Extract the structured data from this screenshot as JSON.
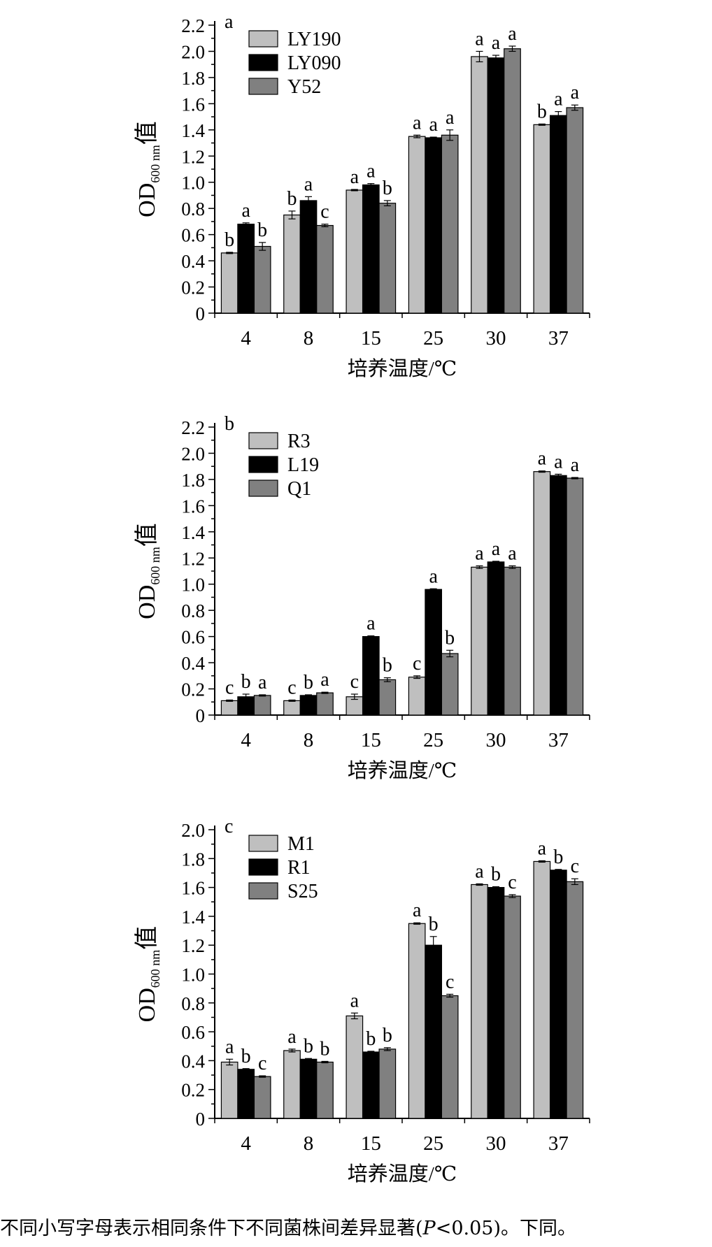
{
  "chart_data": [
    {
      "type": "bar",
      "panel_label": "a",
      "categories": [
        "4",
        "8",
        "15",
        "25",
        "30",
        "37"
      ],
      "series": [
        {
          "name": "LY190",
          "values": [
            0.46,
            0.75,
            0.94,
            1.35,
            1.96,
            1.44
          ],
          "errors": [
            0.005,
            0.03,
            0.005,
            0.01,
            0.04,
            0.005
          ],
          "letters": [
            "b",
            "b",
            "a",
            "a",
            "a",
            "b"
          ]
        },
        {
          "name": "LY090",
          "values": [
            0.68,
            0.86,
            0.98,
            1.34,
            1.95,
            1.51
          ],
          "errors": [
            0.01,
            0.03,
            0.01,
            0.005,
            0.02,
            0.03
          ],
          "letters": [
            "a",
            "a",
            "a",
            "a",
            "a",
            "a"
          ]
        },
        {
          "name": "Y52",
          "values": [
            0.51,
            0.67,
            0.84,
            1.36,
            2.02,
            1.57
          ],
          "errors": [
            0.03,
            0.01,
            0.02,
            0.04,
            0.02,
            0.02
          ],
          "letters": [
            "b",
            "c",
            "b",
            "a",
            "a",
            "a"
          ]
        }
      ],
      "xlabel": "培养温度/℃",
      "ylabel_main": "OD",
      "ylabel_sub": "600 nm",
      "ylabel_suffix": "值",
      "ylim": [
        0,
        2.2
      ],
      "yticks": [
        "0",
        "0.2",
        "0.4",
        "0.6",
        "0.8",
        "1.0",
        "1.2",
        "1.4",
        "1.6",
        "1.8",
        "2.0",
        "2.2"
      ],
      "legend_position": "top-left",
      "grid": false,
      "colors": [
        "#bfbfbf",
        "#000000",
        "#808080"
      ]
    },
    {
      "type": "bar",
      "panel_label": "b",
      "categories": [
        "4",
        "8",
        "15",
        "25",
        "30",
        "37"
      ],
      "series": [
        {
          "name": "R3",
          "values": [
            0.11,
            0.11,
            0.14,
            0.29,
            1.13,
            1.86
          ],
          "errors": [
            0.005,
            0.005,
            0.02,
            0.01,
            0.01,
            0.005
          ],
          "letters": [
            "c",
            "c",
            "c",
            "c",
            "a",
            "a"
          ]
        },
        {
          "name": "L19",
          "values": [
            0.14,
            0.15,
            0.6,
            0.96,
            1.17,
            1.83
          ],
          "errors": [
            0.02,
            0.005,
            0.005,
            0.005,
            0.005,
            0.01
          ],
          "letters": [
            "b",
            "b",
            "a",
            "a",
            "a",
            "a"
          ]
        },
        {
          "name": "Q1",
          "values": [
            0.15,
            0.17,
            0.27,
            0.47,
            1.13,
            1.81
          ],
          "errors": [
            0.005,
            0.005,
            0.015,
            0.025,
            0.01,
            0.005
          ],
          "letters": [
            "a",
            "a",
            "b",
            "b",
            "a",
            "a"
          ]
        }
      ],
      "xlabel": "培养温度/℃",
      "ylabel_main": "OD",
      "ylabel_sub": "600 nm",
      "ylabel_suffix": "值",
      "ylim": [
        0,
        2.2
      ],
      "yticks": [
        "0",
        "0.2",
        "0.4",
        "0.6",
        "0.8",
        "1.0",
        "1.2",
        "1.4",
        "1.6",
        "1.8",
        "2.0",
        "2.2"
      ],
      "legend_position": "top-left",
      "grid": false,
      "colors": [
        "#bfbfbf",
        "#000000",
        "#808080"
      ]
    },
    {
      "type": "bar",
      "panel_label": "c",
      "categories": [
        "4",
        "8",
        "15",
        "25",
        "30",
        "37"
      ],
      "series": [
        {
          "name": "M1",
          "values": [
            0.39,
            0.47,
            0.71,
            1.35,
            1.62,
            1.78
          ],
          "errors": [
            0.02,
            0.01,
            0.02,
            0.005,
            0.005,
            0.005
          ],
          "letters": [
            "a",
            "a",
            "a",
            "a",
            "a",
            "a"
          ]
        },
        {
          "name": "R1",
          "values": [
            0.34,
            0.41,
            0.46,
            1.2,
            1.6,
            1.72
          ],
          "errors": [
            0.005,
            0.005,
            0.005,
            0.06,
            0.005,
            0.005
          ],
          "letters": [
            "b",
            "b",
            "b",
            "b",
            "b",
            "b"
          ]
        },
        {
          "name": "S25",
          "values": [
            0.29,
            0.39,
            0.48,
            0.85,
            1.54,
            1.64
          ],
          "errors": [
            0.005,
            0.005,
            0.01,
            0.01,
            0.01,
            0.02
          ],
          "letters": [
            "c",
            "b",
            "b",
            "c",
            "c",
            "c"
          ]
        }
      ],
      "xlabel": "培养温度/℃",
      "ylabel_main": "OD",
      "ylabel_sub": "600 nm",
      "ylabel_suffix": "值",
      "ylim": [
        0,
        2.0
      ],
      "yticks": [
        "0",
        "0.2",
        "0.4",
        "0.6",
        "0.8",
        "1.0",
        "1.2",
        "1.4",
        "1.6",
        "1.8",
        "2.0"
      ],
      "legend_position": "top-left",
      "grid": false,
      "colors": [
        "#bfbfbf",
        "#000000",
        "#808080"
      ]
    }
  ],
  "caption": {
    "prefix": "不同小写字母表示相同条件下不同菌株间差异显著(",
    "italic": "P",
    "suffix": "<0.05)。下同。"
  }
}
